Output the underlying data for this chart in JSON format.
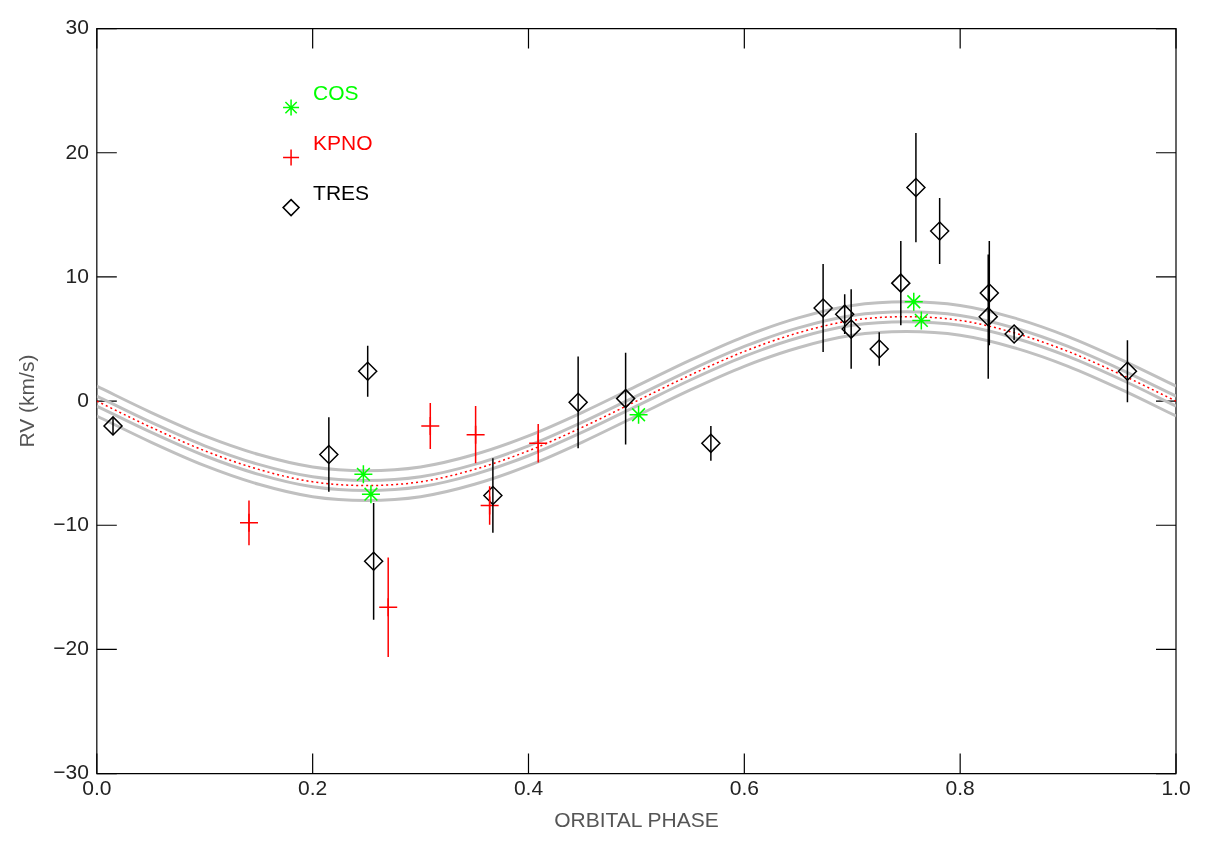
{
  "chart_data": {
    "type": "scatter",
    "xlabel": "ORBITAL PHASE",
    "ylabel": "RV (km/s)",
    "xlim": [
      0,
      1
    ],
    "xticks": [
      {
        "value": 0,
        "label": "0.0"
      },
      {
        "value": 0.2,
        "label": "0.2"
      },
      {
        "value": 0.4,
        "label": "0.4"
      },
      {
        "value": 0.6,
        "label": "0.6"
      },
      {
        "value": 0.8,
        "label": "0.8"
      },
      {
        "value": 1,
        "label": "1.0"
      }
    ],
    "ylim": [
      -30,
      30
    ],
    "yticks": [
      {
        "value": -30,
        "label": "−30"
      },
      {
        "value": -20,
        "label": "−20"
      },
      {
        "value": -10,
        "label": "−10"
      },
      0,
      10,
      20,
      30
    ],
    "grid": false,
    "legend": "top left",
    "x": [
      0,
      0.05,
      0.1,
      0.15,
      0.2,
      0.25,
      0.3,
      0.35,
      0.4,
      0.45,
      0.5,
      0.55,
      0.6,
      0.65,
      0.7,
      0.75,
      0.8,
      0.85,
      0.9,
      0.95,
      1
    ],
    "series": [
      {
        "type": "line",
        "color": "#c0c0c0",
        "marker": "none",
        "values": [
          1.2,
          -0.9,
          -2.8,
          -4.3,
          -5.3,
          -5.6,
          -5.3,
          -4.3,
          -2.8,
          -0.9,
          1.2,
          3.3,
          5.2,
          6.7,
          7.7,
          8.0,
          7.7,
          6.7,
          5.2,
          3.3,
          1.2
        ]
      },
      {
        "type": "line",
        "color": "#c0c0c0",
        "marker": "none",
        "values": [
          0.4,
          -1.7,
          -3.6,
          -5.1,
          -6.1,
          -6.4,
          -6.1,
          -5.1,
          -3.6,
          -1.7,
          0.4,
          2.5,
          4.4,
          5.9,
          6.9,
          7.2,
          6.9,
          5.9,
          4.4,
          2.5,
          0.4
        ]
      },
      {
        "type": "line",
        "color": "#c0c0c0",
        "marker": "none",
        "values": [
          -0.4,
          -2.5,
          -4.4,
          -5.9,
          -6.9,
          -7.2,
          -6.9,
          -5.9,
          -4.4,
          -2.5,
          -0.4,
          1.7,
          3.6,
          5.1,
          6.1,
          6.4,
          6.1,
          5.1,
          3.6,
          1.7,
          -0.4
        ]
      },
      {
        "type": "line",
        "color": "#c0c0c0",
        "marker": "none",
        "values": [
          -1.2,
          -3.3,
          -5.2,
          -6.7,
          -7.7,
          -8.0,
          -7.7,
          -6.7,
          -5.2,
          -3.3,
          -1.2,
          0.9,
          2.8,
          4.3,
          5.3,
          5.6,
          5.3,
          4.3,
          2.8,
          0.9,
          -1.2
        ]
      },
      {
        "type": "line",
        "color": "#ff0000",
        "marker": "none",
        "line_style": "dotted",
        "values": [
          0,
          -2.1,
          -4.0,
          -5.5,
          -6.5,
          -6.8,
          -6.5,
          -5.5,
          -4.0,
          -2.1,
          0,
          2.1,
          4.0,
          5.5,
          6.5,
          6.8,
          6.5,
          5.5,
          4.0,
          2.1,
          0
        ]
      },
      {
        "name": "COS",
        "color": "#00ff00",
        "x": [
          0.247,
          0.254,
          0.502,
          0.757,
          0.764
        ],
        "values": [
          -5.9,
          -7.5,
          -1.1,
          8.0,
          6.5
        ]
      },
      {
        "name": "KPNO",
        "color": "#ff0000",
        "marker": "cross",
        "x": [
          0.141,
          0.27,
          0.309,
          0.351,
          0.364,
          0.409
        ],
        "values": [
          -9.8,
          -16.6,
          -2.0,
          -2.7,
          -8.4,
          -3.4
        ],
        "errors": [
          1.8,
          4,
          1.85,
          2.3,
          1.55,
          1.55
        ]
      },
      {
        "name": "TRES",
        "color": "#000000",
        "marker": "diamond",
        "x": [
          0.015,
          0.215,
          0.251,
          0.2565,
          0.367,
          0.446,
          0.49,
          0.569,
          0.673,
          0.693,
          0.699,
          0.725,
          0.745,
          0.759,
          0.781,
          0.826,
          0.827,
          0.85,
          0.955
        ],
        "values": [
          -2.0,
          -4.3,
          2.4,
          -12.9,
          -7.6,
          -0.1,
          0.2,
          -3.4,
          7.5,
          7.0,
          5.8,
          4.2,
          9.5,
          17.2,
          13.7,
          6.8,
          8.7,
          5.4,
          2.4
        ],
        "errors": [
          0.7,
          3.0,
          2.05,
          4.7,
          3.0,
          3.7,
          3.7,
          1.4,
          3.55,
          1.6,
          3.2,
          1.35,
          3.4,
          4.4,
          2.65,
          5.0,
          4.2,
          0.5,
          2.5
        ]
      }
    ]
  }
}
